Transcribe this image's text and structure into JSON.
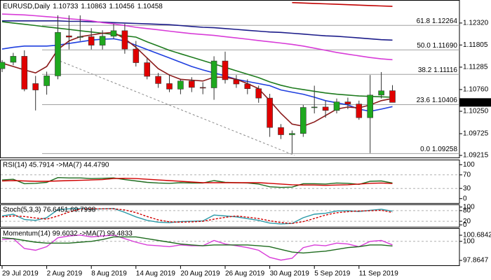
{
  "chart_data": [
    {
      "type": "candlestick",
      "title": "EURUSD,Daily",
      "categories": [
        "29 Jul 2019",
        null,
        null,
        null,
        "2 Aug 2019",
        null,
        null,
        null,
        "8 Aug 2019",
        null,
        null,
        null,
        "14 Aug 2019",
        null,
        null,
        null,
        "20 Aug 2019",
        null,
        null,
        null,
        "26 Aug 2019",
        null,
        null,
        null,
        "30 Aug 2019",
        null,
        null,
        null,
        "5 Sep 2019",
        null,
        null,
        null,
        "11 Sep 2019",
        null,
        null,
        null
      ],
      "open": [
        1.1125,
        1.114,
        1.1154,
        1.109,
        1.1085,
        1.1108,
        1.1202,
        1.1199,
        1.12,
        1.118,
        1.1201,
        1.1214,
        1.1171,
        1.1139,
        1.1107,
        1.109,
        1.1077,
        1.1096,
        1.1081,
        1.108,
        1.1143,
        1.1099,
        1.1089,
        1.1078,
        1.1056,
        1.0987,
        1.097,
        1.0973,
        1.1034,
        1.1035,
        1.1027,
        1.1047,
        1.1042,
        1.101,
        1.1063,
        1.10733
      ],
      "high": [
        1.1145,
        1.1162,
        1.1168,
        1.1108,
        1.1118,
        1.125,
        1.125,
        1.125,
        1.122,
        1.1215,
        1.123,
        1.123,
        1.119,
        1.115,
        1.1115,
        1.111,
        1.11,
        1.1105,
        1.1093,
        1.1154,
        1.1165,
        1.111,
        1.11,
        1.1085,
        1.1066,
        1.0995,
        1.098,
        1.104,
        1.1085,
        1.105,
        1.1055,
        1.1057,
        1.105,
        1.111,
        1.1117,
        1.10863
      ],
      "low": [
        1.1117,
        1.1133,
        1.1072,
        1.1027,
        1.1064,
        1.11,
        1.117,
        1.119,
        1.117,
        1.117,
        1.1195,
        1.116,
        1.113,
        1.11,
        1.108,
        1.107,
        1.1065,
        1.107,
        1.1065,
        1.1052,
        1.109,
        1.108,
        1.1065,
        1.1045,
        1.0965,
        1.096,
        1.0926,
        1.0965,
        1.102,
        1.101,
        1.102,
        1.103,
        1.1005,
        1.0927,
        1.1055,
        1.10456
      ],
      "close": [
        1.114,
        1.1154,
        1.1077,
        1.1075,
        1.1108,
        1.121,
        1.1199,
        1.12,
        1.118,
        1.1201,
        1.1214,
        1.1171,
        1.1139,
        1.1107,
        1.109,
        1.1077,
        1.1096,
        1.1081,
        1.108,
        1.1143,
        1.1099,
        1.1089,
        1.1078,
        1.1056,
        1.0987,
        1.097,
        1.0973,
        1.1034,
        1.1035,
        1.1027,
        1.1047,
        1.1042,
        1.101,
        1.1063,
        1.1073,
        1.10458
      ],
      "up_color": "#1fa81f",
      "down_color": "#e00000",
      "ylim": [
        1.0915,
        1.1286
      ],
      "yticks": [
        {
          "value": 1.1232,
          "label": "1.12320"
        },
        1.11805,
        1.11285,
        {
          "value": 1.1076,
          "label": "1.10760"
        },
        {
          "value": 1.1025,
          "label": "1.10250"
        },
        1.09725,
        1.09215
      ],
      "fib": [
        {
          "value": 1.12264,
          "label": "61.8 1.12264"
        },
        {
          "value": 1.1169,
          "label": "50.0 1.11690"
        },
        {
          "value": 1.11116,
          "label": "38.2 1.11116"
        },
        {
          "value": 1.10406,
          "label": "23.6 1.10406"
        },
        {
          "value": 1.09258,
          "label": "0.0 1.09258"
        }
      ],
      "series": [
        {
          "color": "#1c1c8a",
          "values": [
            1.1237,
            1.1237,
            1.1237,
            1.1237,
            1.1237,
            1.1237,
            1.1236,
            1.1236,
            1.1235,
            1.1234,
            1.1233,
            1.1232,
            1.1231,
            1.123,
            1.1229,
            1.1228,
            1.1226,
            1.1224,
            1.1222,
            1.1221,
            1.1219,
            1.1217,
            1.1215,
            1.1213,
            1.1211,
            1.121,
            1.1208,
            1.1206,
            1.1204,
            1.1202,
            1.1201,
            1.1199,
            1.1197,
            1.1195,
            1.1193,
            1.1192
          ]
        },
        {
          "color": "#d83cd8",
          "values": [
            1.1253,
            1.1252,
            1.1251,
            1.1249,
            1.1247,
            1.1245,
            1.1242,
            1.124,
            1.1237,
            1.1233,
            1.123,
            1.1226,
            1.1222,
            1.1219,
            1.1216,
            1.1213,
            1.121,
            1.1207,
            1.1205,
            1.1203,
            1.12,
            1.1197,
            1.1194,
            1.1191,
            1.1188,
            1.1185,
            1.1182,
            1.1178,
            1.1173,
            1.1168,
            1.1163,
            1.1159,
            1.1155,
            1.1151,
            1.1148,
            1.1146
          ]
        },
        {
          "color": "#c00000",
          "values": [
            null,
            null,
            null,
            null,
            null,
            null,
            null,
            null,
            null,
            null,
            null,
            null,
            null,
            null,
            null,
            null,
            null,
            null,
            null,
            null,
            null,
            null,
            null,
            null,
            null,
            null,
            1.128,
            1.1279,
            1.1278,
            1.1277,
            1.1276,
            1.1275,
            1.1274,
            1.1273,
            1.1272,
            1.1271
          ]
        },
        {
          "color": "#1e7b1e",
          "values": [
            1.1235,
            1.1232,
            1.1229,
            1.1226,
            1.1223,
            1.122,
            1.1217,
            1.1214,
            1.1211,
            1.1208,
            1.1205,
            1.1202,
            1.1199,
            1.1188,
            1.1178,
            1.1168,
            1.116,
            1.1152,
            1.1144,
            1.1136,
            1.1128,
            1.112,
            1.1112,
            1.1104,
            1.1094,
            1.1086,
            1.108,
            1.1076,
            1.1072,
            1.1068,
            1.1065,
            1.1063,
            1.1061,
            1.106,
            1.1059,
            1.1058
          ]
        },
        {
          "color": "#1f3fdf",
          "values": [
            1.1171,
            1.1175,
            1.1178,
            1.1178,
            1.1178,
            1.118,
            1.1184,
            1.1188,
            1.1192,
            1.1194,
            1.1195,
            1.119,
            1.118,
            1.117,
            1.116,
            1.115,
            1.114,
            1.113,
            1.1122,
            1.1115,
            1.1108,
            1.11,
            1.1095,
            1.109,
            1.1085,
            1.1075,
            1.107,
            1.1065,
            1.1058,
            1.105,
            1.1045,
            1.104,
            1.103,
            1.1025,
            1.103,
            1.1036
          ]
        },
        {
          "color": "#8b1a1a",
          "values": [
            1.1138,
            1.113,
            1.1122,
            1.1115,
            1.113,
            1.117,
            1.119,
            1.12,
            1.1204,
            1.1208,
            1.121,
            1.1195,
            1.1175,
            1.115,
            1.1125,
            1.111,
            1.11,
            1.1098,
            1.1096,
            1.1105,
            1.1105,
            1.11,
            1.109,
            1.1078,
            1.105,
            1.102,
            1.0995,
            1.099,
            1.1,
            1.1015,
            1.103,
            1.1035,
            1.1033,
            1.104,
            1.105,
            1.1055
          ]
        }
      ]
    },
    {
      "type": "line",
      "title": "RSI(14) 45.7914 ->MA(7) 44.4790",
      "ylim": [
        -15,
        115
      ],
      "yticks": [
        100,
        70,
        30,
        0
      ],
      "levels": [
        70,
        30
      ],
      "series": [
        {
          "color": "#1e6b1e",
          "values": [
            55,
            57,
            44,
            45,
            48,
            62,
            61,
            61,
            59,
            60,
            61,
            56,
            52,
            48,
            46,
            45,
            47,
            46,
            46,
            53,
            48,
            47,
            46,
            43,
            35,
            33,
            34,
            44,
            44,
            43,
            46,
            45,
            42,
            51,
            52,
            45.7914
          ]
        },
        {
          "color": "#d00000",
          "values": [
            52,
            53,
            52,
            51,
            51,
            52,
            53,
            54,
            55,
            56,
            59,
            60,
            59,
            57,
            55,
            53,
            51,
            49,
            47,
            47,
            47,
            47,
            47,
            47,
            45,
            43,
            41,
            40,
            40,
            39,
            40,
            41,
            43,
            45,
            46,
            44.479
          ]
        }
      ]
    },
    {
      "type": "line",
      "title": "Stoch(5,3,3) 76.6451 69.7998",
      "ylim": [
        -15,
        115
      ],
      "yticks": [
        100,
        80,
        20,
        0
      ],
      "levels": [
        80,
        20
      ],
      "series": [
        {
          "color": "#2a9aa8",
          "values": [
            50,
            60,
            30,
            25,
            40,
            85,
            90,
            92,
            88,
            90,
            92,
            70,
            45,
            25,
            15,
            12,
            18,
            20,
            22,
            55,
            50,
            45,
            35,
            25,
            10,
            5,
            8,
            40,
            60,
            65,
            78,
            80,
            75,
            82,
            88,
            76.6451
          ]
        },
        {
          "color": "#d00000",
          "dashed": true,
          "values": [
            45,
            50,
            47,
            38,
            32,
            50,
            72,
            89,
            90,
            90,
            90,
            84,
            69,
            47,
            28,
            17,
            15,
            17,
            20,
            32,
            42,
            50,
            43,
            35,
            23,
            13,
            8,
            18,
            36,
            55,
            68,
            74,
            78,
            79,
            82,
            69.7998
          ]
        }
      ]
    },
    {
      "type": "line",
      "title": "Momentum(14) 99.6032 ->MA(7) 99.4833",
      "ylim": [
        97.24,
        101.47
      ],
      "yticks": [
        100.6842,
        100,
        97.8647
      ],
      "levels": [
        100
      ],
      "series": [
        {
          "color": "#d83cd8",
          "values": [
            100.2,
            100.3,
            99.2,
            99.0,
            99.4,
            100.4,
            100.6,
            100.7,
            100.5,
            100.6,
            100.7,
            100.3,
            99.9,
            99.6,
            99.5,
            99.4,
            99.6,
            99.5,
            99.5,
            100.1,
            99.7,
            99.5,
            99.3,
            99.0,
            98.2,
            97.9,
            98.1,
            99.3,
            99.6,
            99.5,
            99.8,
            99.7,
            99.4,
            100.0,
            100.1,
            99.6032
          ]
        },
        {
          "color": "#1e6b1e",
          "values": [
            100.4,
            100.3,
            100.1,
            99.9,
            99.8,
            99.8,
            99.8,
            99.9,
            100.0,
            100.2,
            100.5,
            100.5,
            100.5,
            100.3,
            100.1,
            99.9,
            99.7,
            99.6,
            99.5,
            99.6,
            99.6,
            99.6,
            99.6,
            99.5,
            99.4,
            99.1,
            98.8,
            98.7,
            98.8,
            98.9,
            99.1,
            99.3,
            99.4,
            99.6,
            99.6,
            99.4833
          ]
        }
      ]
    }
  ]
}
